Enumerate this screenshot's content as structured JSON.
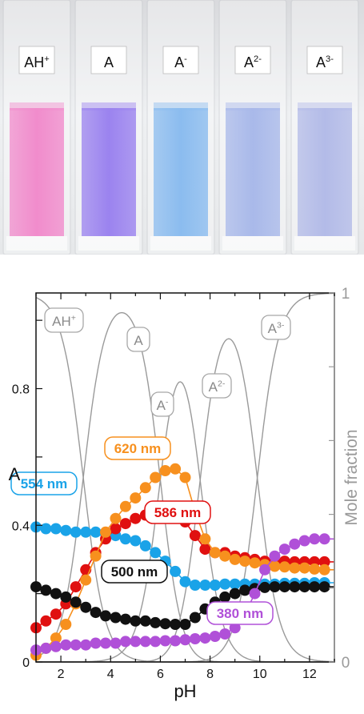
{
  "photo": {
    "cuvettes": [
      {
        "label_base": "AH",
        "label_sup": "+",
        "color": "#f18ccc"
      },
      {
        "label_base": "A",
        "label_sup": "",
        "color": "#9b83ef"
      },
      {
        "label_base": "A",
        "label_sup": "-",
        "color": "#8bbcef"
      },
      {
        "label_base": "A",
        "label_sup": "2-",
        "color": "#a9b9ea"
      },
      {
        "label_base": "A",
        "label_sup": "3-",
        "color": "#b3bbe8"
      }
    ]
  },
  "chart_data": {
    "type": "scatter",
    "xlabel": "pH",
    "ylabel_left": "A",
    "ylabel_right": "Mole fraction",
    "xlim": [
      1,
      13
    ],
    "ylim_left": [
      0,
      1.08
    ],
    "ylim_right": [
      0,
      1
    ],
    "x_ticks": [
      2,
      4,
      6,
      8,
      10,
      12
    ],
    "y_ticks_left": [
      0,
      0.4,
      0.8
    ],
    "y_ticks_right": [
      0,
      1
    ],
    "series": [
      {
        "name": "554 nm",
        "color": "#1aa3e8",
        "x": [
          1,
          1.4,
          1.8,
          2.2,
          2.6,
          3,
          3.4,
          3.8,
          4.2,
          4.6,
          5,
          5.4,
          5.8,
          6.2,
          6.6,
          7,
          7.4,
          7.8,
          8.2,
          8.6,
          9,
          9.4,
          9.8,
          10.2,
          10.6,
          11,
          11.4,
          11.8,
          12.2,
          12.6
        ],
        "y": [
          0.395,
          0.39,
          0.39,
          0.385,
          0.38,
          0.38,
          0.38,
          0.375,
          0.37,
          0.36,
          0.355,
          0.34,
          0.32,
          0.295,
          0.265,
          0.235,
          0.225,
          0.225,
          0.225,
          0.228,
          0.228,
          0.228,
          0.228,
          0.228,
          0.228,
          0.23,
          0.23,
          0.23,
          0.232,
          0.232
        ]
      },
      {
        "name": "586 nm",
        "color": "#e01010",
        "x": [
          1,
          1.4,
          1.8,
          2.2,
          2.6,
          3,
          3.4,
          3.8,
          4.2,
          4.6,
          5,
          5.4,
          5.8,
          6.2,
          6.6,
          7,
          7.4,
          7.8,
          8.2,
          8.6,
          9,
          9.4,
          9.8,
          10.2,
          10.6,
          11,
          11.4,
          11.8,
          12.2,
          12.6
        ],
        "y": [
          0.1,
          0.12,
          0.14,
          0.17,
          0.22,
          0.27,
          0.32,
          0.36,
          0.39,
          0.405,
          0.42,
          0.43,
          0.435,
          0.44,
          0.435,
          0.41,
          0.37,
          0.33,
          0.32,
          0.32,
          0.31,
          0.305,
          0.3,
          0.295,
          0.295,
          0.295,
          0.293,
          0.293,
          0.293,
          0.293
        ]
      },
      {
        "name": "620 nm",
        "color": "#f7901e",
        "x": [
          1,
          1.4,
          1.8,
          2.2,
          2.6,
          3,
          3.4,
          3.8,
          4.2,
          4.6,
          5,
          5.4,
          5.8,
          6.2,
          6.6,
          7,
          7.4,
          7.8,
          8.2,
          8.6,
          9,
          9.4,
          9.8,
          10.2,
          10.6,
          11,
          11.4,
          11.8,
          12.2,
          12.6
        ],
        "y": [
          0.02,
          0.04,
          0.07,
          0.11,
          0.17,
          0.24,
          0.31,
          0.38,
          0.42,
          0.455,
          0.48,
          0.51,
          0.54,
          0.56,
          0.565,
          0.54,
          0.44,
          0.36,
          0.32,
          0.31,
          0.3,
          0.295,
          0.29,
          0.285,
          0.28,
          0.278,
          0.275,
          0.275,
          0.272,
          0.27
        ]
      },
      {
        "name": "500 nm",
        "color": "#111111",
        "x": [
          1,
          1.4,
          1.8,
          2.2,
          2.6,
          3,
          3.4,
          3.8,
          4.2,
          4.6,
          5,
          5.4,
          5.8,
          6.2,
          6.6,
          7,
          7.4,
          7.8,
          8.2,
          8.6,
          9,
          9.4,
          9.8,
          10.2,
          10.6,
          11,
          11.4,
          11.8,
          12.2,
          12.6
        ],
        "y": [
          0.22,
          0.21,
          0.2,
          0.19,
          0.175,
          0.16,
          0.145,
          0.135,
          0.13,
          0.125,
          0.12,
          0.12,
          0.115,
          0.112,
          0.11,
          0.11,
          0.13,
          0.155,
          0.175,
          0.19,
          0.2,
          0.21,
          0.215,
          0.218,
          0.22,
          0.22,
          0.22,
          0.22,
          0.22,
          0.22
        ]
      },
      {
        "name": "380 nm",
        "color": "#b050d8",
        "x": [
          1,
          1.4,
          1.8,
          2.2,
          2.6,
          3,
          3.4,
          3.8,
          4.2,
          4.6,
          5,
          5.4,
          5.8,
          6.2,
          6.6,
          7,
          7.4,
          7.8,
          8.2,
          8.6,
          9,
          9.4,
          9.8,
          10.2,
          10.6,
          11,
          11.4,
          11.8,
          12.2,
          12.6
        ],
        "y": [
          0.035,
          0.04,
          0.045,
          0.05,
          0.05,
          0.05,
          0.055,
          0.055,
          0.055,
          0.06,
          0.06,
          0.06,
          0.06,
          0.062,
          0.062,
          0.065,
          0.068,
          0.07,
          0.075,
          0.082,
          0.1,
          0.14,
          0.2,
          0.27,
          0.31,
          0.33,
          0.345,
          0.355,
          0.36,
          0.36
        ]
      }
    ],
    "species": [
      {
        "name_base": "AH",
        "name_sup": "+",
        "pka_low": null,
        "pka_high": 2.9
      },
      {
        "name_base": "A",
        "name_sup": "",
        "pka_low": 2.9,
        "pka_high": 6.0
      },
      {
        "name_base": "A",
        "name_sup": "-",
        "pka_low": 6.0,
        "pka_high": 7.6
      },
      {
        "name_base": "A",
        "name_sup": "2-",
        "pka_low": 7.6,
        "pka_high": 9.9
      },
      {
        "name_base": "A",
        "name_sup": "3-",
        "pka_low": 9.9,
        "pka_high": null
      }
    ]
  }
}
